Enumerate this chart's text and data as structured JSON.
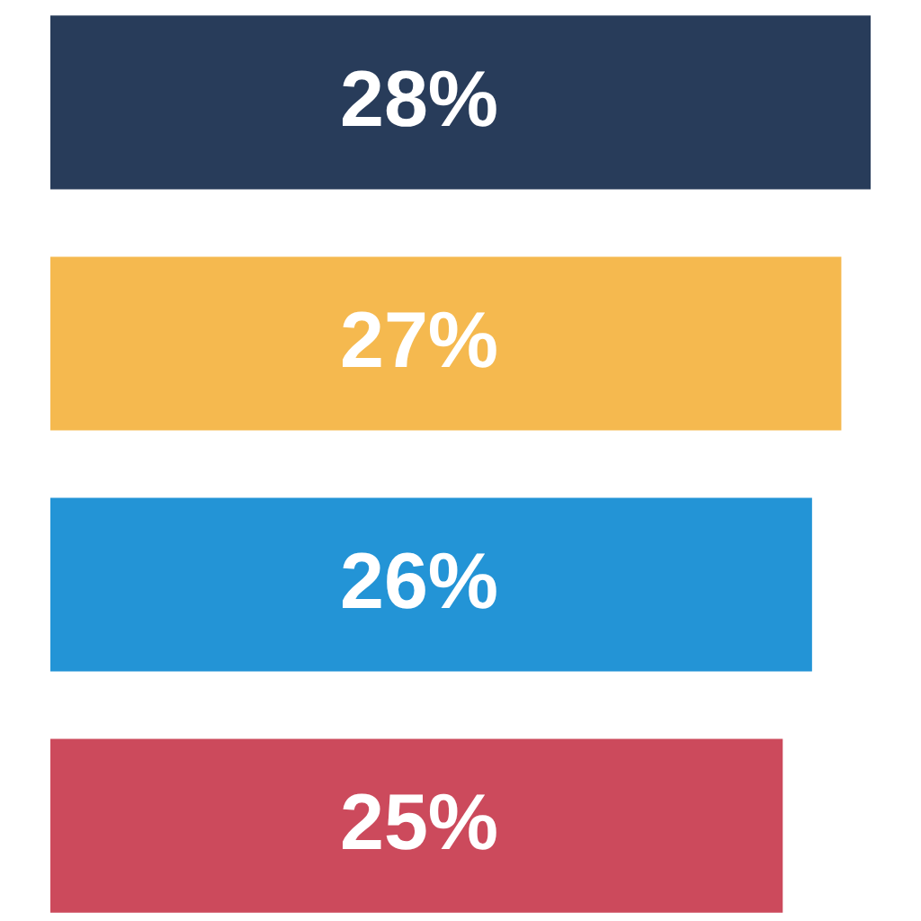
{
  "chart_data": {
    "type": "bar",
    "orientation": "horizontal",
    "categories": [
      null,
      null,
      null,
      null
    ],
    "values": [
      28,
      27,
      26,
      25
    ],
    "colors": [
      "#283c5a",
      "#f5b94f",
      "#2394d6",
      "#cc4a5c"
    ],
    "value_labels": [
      "28%",
      "27%",
      "26%",
      "25%"
    ],
    "tick_labels": false
  }
}
